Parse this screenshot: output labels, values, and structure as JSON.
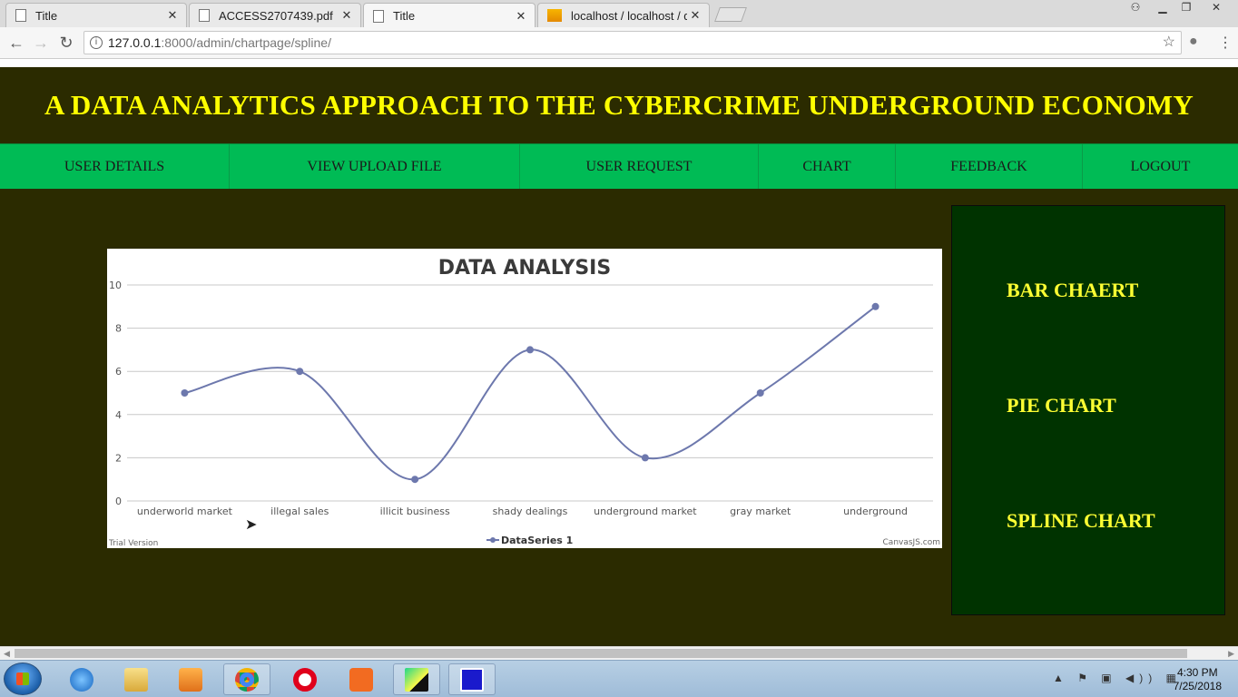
{
  "browser": {
    "tabs": [
      {
        "label": "Title",
        "icon": "page-icon"
      },
      {
        "label": "ACCESS2707439.pdf",
        "icon": "page-icon"
      },
      {
        "label": "Title",
        "icon": "page-icon",
        "active": true
      },
      {
        "label": "localhost / localhost / da",
        "icon": "phpmyadmin-icon"
      }
    ],
    "tab_close": "✕",
    "url_host": "127.0.0.1",
    "url_path": ":8000/admin/chartpage/spline/"
  },
  "page": {
    "title": "A DATA ANALYTICS APPROACH TO THE CYBERCRIME UNDERGROUND ECONOMY",
    "nav": [
      "USER DETAILS",
      "VIEW UPLOAD FILE",
      "USER REQUEST",
      "CHART",
      "FEEDBACK",
      "LOGOUT"
    ],
    "sidebar": [
      "BAR CHAERT",
      "PIE CHART",
      "SPLINE CHART"
    ],
    "colors": {
      "header_bg": "#2b2b00",
      "title": "#ffff00",
      "nav_bg": "#00bb55",
      "sidebar_bg": "#003300",
      "sidebar_text": "#ffff33",
      "series": "#6d78ad"
    }
  },
  "chart_data": {
    "type": "line",
    "smooth": true,
    "title": "DATA ANALYSIS",
    "categories": [
      "underworld market",
      "illegal sales",
      "illicit business",
      "shady dealings",
      "underground market",
      "gray market",
      "underground"
    ],
    "series": [
      {
        "name": "DataSeries 1",
        "values": [
          5,
          6,
          1,
          7,
          2,
          5,
          9
        ]
      }
    ],
    "ylim": [
      0,
      10
    ],
    "yticks": [
      0,
      2,
      4,
      6,
      8,
      10
    ],
    "grid": true,
    "legend": "bottom-center",
    "watermark_left": "Trial Version",
    "watermark_right": "CanvasJS.com"
  },
  "taskbar": {
    "time": "4:30 PM",
    "date": "7/25/2018"
  }
}
